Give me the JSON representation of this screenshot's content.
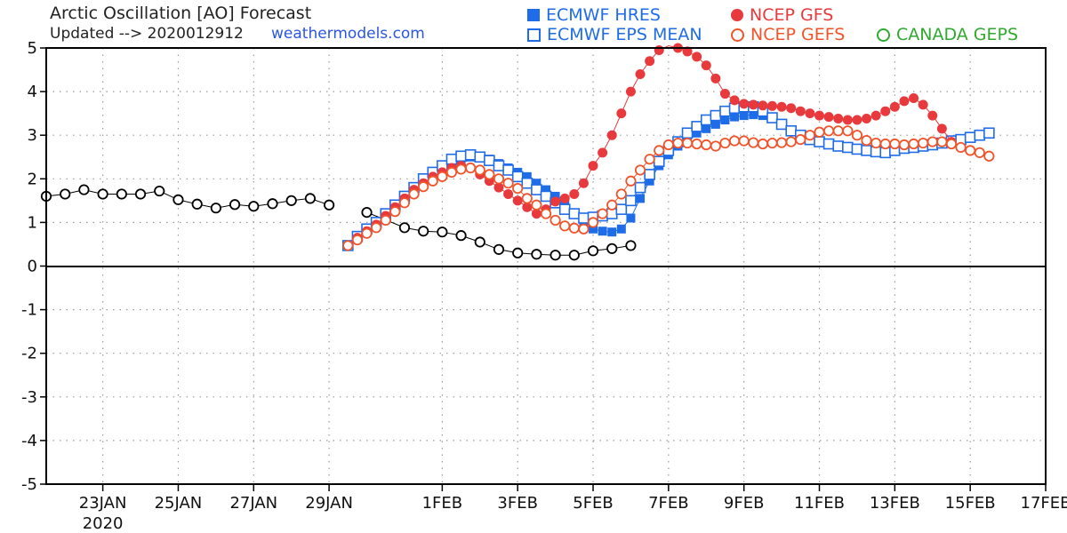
{
  "header": {
    "title": "Arctic Oscillation [AO] Forecast",
    "updated": "Updated --> 2020012912",
    "site": "weathermodels.com"
  },
  "colors": {
    "ecmwf": "#1f6ce8",
    "gfs": "#e8393d",
    "gefs": "#f0542a",
    "geps": "#2fa92f",
    "observed": "#000000"
  },
  "legend": [
    {
      "label": "ECMWF HRES",
      "symbol": "square-filled",
      "color": "#1f6ce8"
    },
    {
      "label": "ECMWF EPS MEAN",
      "symbol": "square-open",
      "color": "#1f6ce8"
    },
    {
      "label": "NCEP GFS",
      "symbol": "circle-filled",
      "color": "#e8393d"
    },
    {
      "label": "NCEP GEFS",
      "symbol": "circle-open",
      "color": "#f0542a"
    },
    {
      "label": "CANADA GEPS",
      "symbol": "circle-open",
      "color": "#2fa92f"
    }
  ],
  "chart_data": {
    "type": "line",
    "title": "Arctic Oscillation [AO] Forecast",
    "xlabel": "",
    "ylabel": "",
    "ylim": [
      -5,
      5
    ],
    "xlim": [
      "2020-01-21T12",
      "2020-02-17"
    ],
    "x_tick_labels": [
      "23JAN",
      "25JAN",
      "27JAN",
      "29JAN",
      "1FEB",
      "3FEB",
      "5FEB",
      "7FEB",
      "9FEB",
      "11FEB",
      "13FEB",
      "15FEB",
      "17FEB"
    ],
    "x_tick_dates": [
      "2020-01-23",
      "2020-01-25",
      "2020-01-27",
      "2020-01-29",
      "2020-02-01",
      "2020-02-03",
      "2020-02-05",
      "2020-02-07",
      "2020-02-09",
      "2020-02-11",
      "2020-02-13",
      "2020-02-15",
      "2020-02-17"
    ],
    "x_year_label": "2020",
    "y_ticks": [
      5,
      4,
      3,
      2,
      1,
      0,
      -1,
      -2,
      -3,
      -4,
      -5
    ],
    "grid": true,
    "legend_position": "top",
    "series": [
      {
        "name": "Observed",
        "marker": "circle-open",
        "color": "#000000",
        "points": [
          [
            "2020-01-21T12",
            1.6
          ],
          [
            "2020-01-22T00",
            1.65
          ],
          [
            "2020-01-22T12",
            1.75
          ],
          [
            "2020-01-23T00",
            1.65
          ],
          [
            "2020-01-23T12",
            1.65
          ],
          [
            "2020-01-24T00",
            1.65
          ],
          [
            "2020-01-24T12",
            1.72
          ],
          [
            "2020-01-25T00",
            1.52
          ],
          [
            "2020-01-25T12",
            1.42
          ],
          [
            "2020-01-26T00",
            1.33
          ],
          [
            "2020-01-26T12",
            1.41
          ],
          [
            "2020-01-27T00",
            1.37
          ],
          [
            "2020-01-27T12",
            1.43
          ],
          [
            "2020-01-28T00",
            1.5
          ],
          [
            "2020-01-28T12",
            1.55
          ],
          [
            "2020-01-29T00",
            1.4
          ],
          null,
          [
            "2020-01-30T00",
            1.23
          ],
          [
            "2020-01-30T12",
            1.06
          ],
          [
            "2020-01-31T00",
            0.88
          ],
          [
            "2020-01-31T12",
            0.8
          ],
          [
            "2020-02-01T00",
            0.78
          ],
          [
            "2020-02-01T12",
            0.7
          ],
          [
            "2020-02-02T00",
            0.55
          ],
          [
            "2020-02-02T12",
            0.38
          ],
          [
            "2020-02-03T00",
            0.3
          ],
          [
            "2020-02-03T12",
            0.27
          ],
          [
            "2020-02-04T00",
            0.25
          ],
          [
            "2020-02-04T12",
            0.25
          ],
          [
            "2020-02-05T00",
            0.35
          ],
          [
            "2020-02-05T12",
            0.4
          ],
          [
            "2020-02-06T00",
            0.47
          ]
        ]
      },
      {
        "name": "ECMWF HRES",
        "marker": "square-filled",
        "color": "#1f6ce8",
        "x_start": "2020-01-29T12",
        "x_step_hours": 6,
        "values": [
          0.47,
          0.65,
          0.8,
          0.95,
          1.15,
          1.35,
          1.55,
          1.75,
          1.95,
          2.1,
          2.25,
          2.35,
          2.45,
          2.5,
          2.5,
          2.45,
          2.35,
          2.25,
          2.15,
          2.05,
          1.9,
          1.75,
          1.6,
          1.4,
          1.2,
          1.0,
          0.85,
          0.8,
          0.78,
          0.85,
          1.1,
          1.55,
          1.95,
          2.3,
          2.55,
          2.75,
          2.9,
          3.05,
          3.15,
          3.25,
          3.35,
          3.42,
          3.45,
          3.47,
          3.45,
          3.4,
          3.25
        ]
      },
      {
        "name": "ECMWF EPS MEAN",
        "marker": "square-open",
        "color": "#1f6ce8",
        "x_start": "2020-01-29T12",
        "x_step_hours": 6,
        "values": [
          0.47,
          0.68,
          0.85,
          1.0,
          1.2,
          1.4,
          1.6,
          1.8,
          2.0,
          2.15,
          2.3,
          2.45,
          2.52,
          2.55,
          2.5,
          2.42,
          2.3,
          2.2,
          2.05,
          1.9,
          1.75,
          1.6,
          1.45,
          1.3,
          1.2,
          1.1,
          1.12,
          1.15,
          1.2,
          1.3,
          1.5,
          1.8,
          2.1,
          2.4,
          2.65,
          2.85,
          3.05,
          3.2,
          3.35,
          3.45,
          3.55,
          3.62,
          3.65,
          3.65,
          3.55,
          3.4,
          3.25,
          3.1,
          3.0,
          2.9,
          2.85,
          2.8,
          2.75,
          2.72,
          2.68,
          2.65,
          2.62,
          2.6,
          2.65,
          2.7,
          2.72,
          2.75,
          2.78,
          2.82,
          2.87,
          2.9,
          2.95,
          3.0,
          3.05
        ]
      },
      {
        "name": "NCEP GFS",
        "marker": "circle-filled",
        "color": "#e8393d",
        "x_start": "2020-01-29T12",
        "x_step_hours": 6,
        "values": [
          0.47,
          0.65,
          0.8,
          0.95,
          1.15,
          1.35,
          1.55,
          1.75,
          1.9,
          2.05,
          2.15,
          2.25,
          2.3,
          2.25,
          2.1,
          1.95,
          1.8,
          1.65,
          1.5,
          1.35,
          1.2,
          1.3,
          1.48,
          1.55,
          1.65,
          1.9,
          2.3,
          2.6,
          3.0,
          3.5,
          4.0,
          4.4,
          4.7,
          4.95,
          5.05,
          5.0,
          4.92,
          4.8,
          4.6,
          4.3,
          3.95,
          3.8,
          3.72,
          3.7,
          3.68,
          3.67,
          3.65,
          3.62,
          3.55,
          3.5,
          3.45,
          3.42,
          3.38,
          3.35,
          3.35,
          3.38,
          3.45,
          3.55,
          3.65,
          3.78,
          3.85,
          3.7,
          3.45,
          3.15,
          2.85
        ]
      },
      {
        "name": "NCEP GEFS",
        "marker": "circle-open",
        "color": "#f0542a",
        "x_start": "2020-01-29T12",
        "x_step_hours": 6,
        "values": [
          0.47,
          0.6,
          0.75,
          0.88,
          1.05,
          1.25,
          1.45,
          1.65,
          1.82,
          1.95,
          2.05,
          2.15,
          2.22,
          2.25,
          2.2,
          2.1,
          2.0,
          1.9,
          1.78,
          1.55,
          1.4,
          1.2,
          1.05,
          0.92,
          0.87,
          0.85,
          1.0,
          1.2,
          1.4,
          1.65,
          1.95,
          2.2,
          2.45,
          2.65,
          2.78,
          2.82,
          2.82,
          2.8,
          2.78,
          2.75,
          2.82,
          2.87,
          2.87,
          2.83,
          2.8,
          2.82,
          2.83,
          2.85,
          2.9,
          3.0,
          3.07,
          3.1,
          3.1,
          3.1,
          3.0,
          2.88,
          2.82,
          2.8,
          2.8,
          2.78,
          2.8,
          2.82,
          2.85,
          2.85,
          2.8,
          2.72,
          2.65,
          2.6,
          2.52
        ]
      }
    ]
  }
}
